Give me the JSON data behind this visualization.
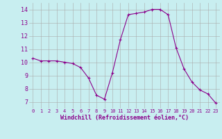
{
  "hours": [
    0,
    1,
    2,
    3,
    4,
    5,
    6,
    7,
    8,
    9,
    10,
    11,
    12,
    13,
    14,
    15,
    16,
    17,
    18,
    19,
    20,
    21,
    22,
    23
  ],
  "windchill": [
    10.3,
    10.1,
    10.1,
    10.1,
    10.0,
    9.9,
    9.6,
    8.8,
    7.5,
    7.2,
    9.2,
    11.7,
    13.6,
    13.7,
    13.8,
    14.0,
    14.0,
    13.6,
    11.1,
    9.5,
    8.5,
    7.9,
    7.6,
    6.9
  ],
  "line_color": "#8B008B",
  "marker": "+",
  "bg_color": "#C8EEF0",
  "grid_color": "#AAAAAA",
  "xlabel": "Windchill (Refroidissement éolien,°C)",
  "xlabel_color": "#8B008B",
  "tick_color": "#8B008B",
  "yticks": [
    7,
    8,
    9,
    10,
    11,
    12,
    13,
    14
  ],
  "ylim": [
    6.5,
    14.5
  ],
  "xlim": [
    -0.5,
    23.5
  ]
}
